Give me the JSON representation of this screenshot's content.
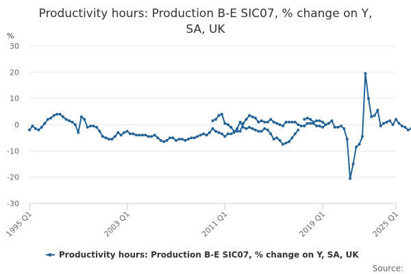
{
  "chart_data": {
    "type": "line",
    "title": "Productivity hours: Production B-E SIC07, % change on Y, SA, UK",
    "title_lines": [
      "Productivity hours: Production B-E SIC07, % change on Y,",
      "SA, UK"
    ],
    "ylabel": "%",
    "ylim": [
      -30,
      30
    ],
    "yticks": [
      30,
      20,
      10,
      0,
      -10,
      -20,
      -30
    ],
    "grid": true,
    "legend_position": "bottom",
    "source_label": "Source:",
    "xticks": [
      {
        "label": "1995 Q1",
        "t": 1995.0
      },
      {
        "label": "2003 Q1",
        "t": 2003.0
      },
      {
        "label": "2011 Q1",
        "t": 2011.0
      },
      {
        "label": "2019 Q1",
        "t": 2019.0
      },
      {
        "label": "2025 Q1",
        "t": 2025.0
      }
    ],
    "xlim": [
      1995.0,
      2025.0
    ],
    "series": [
      {
        "name": "Productivity hours: Production B-E SIC07, % change on Y, SA, UK",
        "color": "#206095",
        "segments": [
          {
            "start": 1995.0,
            "values": [
              -2.0,
              -0.5,
              -1.5,
              -2.0,
              -1.0,
              0.5,
              2.0,
              2.5,
              3.5,
              4.0,
              4.0,
              3.0,
              2.0,
              1.5,
              1.0,
              0.0,
              -3.0,
              3.0,
              2.0,
              -1.0,
              -0.5,
              -0.5,
              -1.0,
              -2.5,
              -4.5,
              -5.0,
              -5.5,
              -5.5,
              -4.5,
              -3.0,
              -4.0,
              -3.0,
              -2.5,
              -3.5,
              -3.5,
              -4.0,
              -4.0,
              -4.0,
              -4.0,
              -4.5,
              -4.5,
              -4.0,
              -5.0,
              -6.0,
              -6.5,
              -6.0,
              -5.0,
              -5.0,
              -6.0,
              -5.5,
              -5.5,
              -6.0,
              -5.5,
              -5.0,
              -5.0,
              -4.5,
              -4.0,
              -3.5,
              -4.0,
              -3.0,
              -1.5,
              -2.5,
              -3.0,
              -3.5,
              -4.5,
              -3.5,
              -3.5,
              -3.0,
              -1.5,
              1.0,
              -1.0,
              -1.5,
              -1.0,
              -1.5,
              -2.0,
              -2.5,
              -2.5,
              -1.5,
              -2.0,
              -3.5,
              -5.5,
              -5.0,
              -6.0,
              -7.5,
              -7.0,
              -6.5,
              -5.0,
              -3.5,
              -2.0
            ]
          },
          {
            "start": 2010.0,
            "values": [
              1.5,
              2.0,
              3.5,
              4.0,
              0.5,
              0.0,
              -1.0,
              -2.5,
              -2.5,
              -2.5,
              0.5,
              2.0,
              3.5,
              3.0,
              2.5,
              1.0,
              1.5,
              1.0,
              1.0,
              2.0,
              1.0,
              0.5,
              0.0,
              -0.5,
              1.0,
              1.0,
              1.0,
              1.0,
              0.0,
              -0.5,
              -0.5,
              0.5,
              0.5,
              0.5,
              -0.5,
              -0.5,
              -1.0,
              0.0
            ]
          },
          {
            "start": 2017.5,
            "values": [
              2.0,
              2.5,
              2.0,
              1.0,
              1.5,
              1.5,
              1.0,
              0.0,
              0.5,
              1.5,
              -1.0,
              -1.0,
              -0.5,
              -1.5,
              -5.5,
              -20.5,
              -15.0,
              -8.5,
              -7.5,
              -4.5,
              19.5,
              10.0,
              3.0,
              3.5,
              5.5,
              -0.5,
              0.5,
              1.0,
              1.5,
              0.0,
              2.0,
              0.5,
              -0.5,
              -1.0,
              -2.0,
              -1.5,
              -1.5,
              2.0,
              1.5,
              0.5
            ]
          }
        ]
      }
    ]
  }
}
